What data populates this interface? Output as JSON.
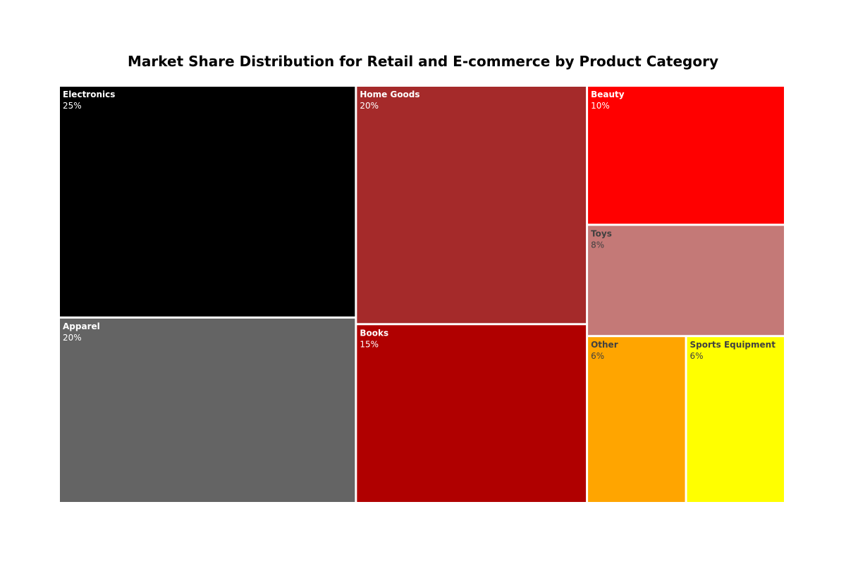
{
  "chart_data": {
    "type": "treemap",
    "title": "Market Share Distribution for Retail and E-commerce by Product Category",
    "unit": "%",
    "items": [
      {
        "category": "Electronics",
        "value": 25,
        "label": "25%",
        "color": "#000000",
        "text_color": "#ffffff"
      },
      {
        "category": "Apparel",
        "value": 20,
        "label": "20%",
        "color": "#646464",
        "text_color": "#ffffff"
      },
      {
        "category": "Home Goods",
        "value": 20,
        "label": "20%",
        "color": "#a52a2a",
        "text_color": "#ffffff"
      },
      {
        "category": "Books",
        "value": 15,
        "label": "15%",
        "color": "#b00000",
        "text_color": "#ffffff"
      },
      {
        "category": "Beauty",
        "value": 10,
        "label": "10%",
        "color": "#ff0000",
        "text_color": "#ffffff"
      },
      {
        "category": "Toys",
        "value": 8,
        "label": "8%",
        "color": "#c47977",
        "text_color": "#404040"
      },
      {
        "category": "Other",
        "value": 6,
        "label": "6%",
        "color": "#ffa500",
        "text_color": "#404040"
      },
      {
        "category": "Sports Equipment",
        "value": 6,
        "label": "6%",
        "color": "#ffff00",
        "text_color": "#404040"
      }
    ]
  }
}
